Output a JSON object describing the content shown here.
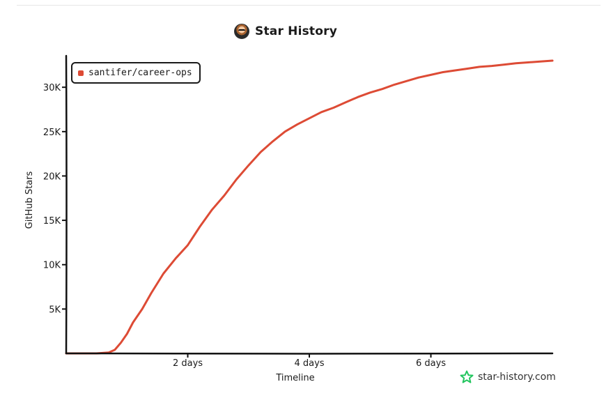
{
  "header": {
    "title": "Star History",
    "avatar_icon": "avatar-icon"
  },
  "legend": {
    "label": "santifer/career-ops",
    "color": "#dd4b35"
  },
  "watermark": {
    "text": "star-history.com",
    "icon": "star-icon",
    "color": "#22c55e"
  },
  "chart_data": {
    "type": "line",
    "title": "Star History",
    "xlabel": "Timeline",
    "ylabel": "GitHub Stars",
    "xlim": [
      0,
      8
    ],
    "ylim": [
      0,
      33000
    ],
    "x_ticks": [
      {
        "value": 2,
        "label": "2 days"
      },
      {
        "value": 4,
        "label": "4 days"
      },
      {
        "value": 6,
        "label": "6 days"
      }
    ],
    "y_ticks": [
      {
        "value": 5000,
        "label": "5K"
      },
      {
        "value": 10000,
        "label": "10K"
      },
      {
        "value": 15000,
        "label": "15K"
      },
      {
        "value": 20000,
        "label": "20K"
      },
      {
        "value": 25000,
        "label": "25K"
      },
      {
        "value": 30000,
        "label": "30K"
      }
    ],
    "grid": false,
    "legend_position": "top-left",
    "series": [
      {
        "name": "santifer/career-ops",
        "color": "#dd4b35",
        "x": [
          0,
          0.5,
          0.7,
          0.8,
          0.9,
          1.0,
          1.1,
          1.25,
          1.4,
          1.6,
          1.8,
          2.0,
          2.2,
          2.4,
          2.6,
          2.8,
          3.0,
          3.2,
          3.4,
          3.6,
          3.8,
          4.0,
          4.2,
          4.4,
          4.6,
          4.8,
          5.0,
          5.2,
          5.4,
          5.6,
          5.8,
          6.0,
          6.2,
          6.4,
          6.6,
          6.8,
          7.0,
          7.2,
          7.4,
          7.6,
          7.8,
          8.0
        ],
        "y": [
          0,
          0,
          100,
          400,
          1200,
          2200,
          3500,
          5000,
          6800,
          9000,
          10700,
          12200,
          14300,
          16200,
          17800,
          19600,
          21200,
          22700,
          23900,
          25000,
          25800,
          26500,
          27200,
          27700,
          28300,
          28900,
          29400,
          29800,
          30300,
          30700,
          31100,
          31400,
          31700,
          31900,
          32100,
          32300,
          32400,
          32550,
          32700,
          32800,
          32900,
          33000
        ]
      }
    ]
  }
}
